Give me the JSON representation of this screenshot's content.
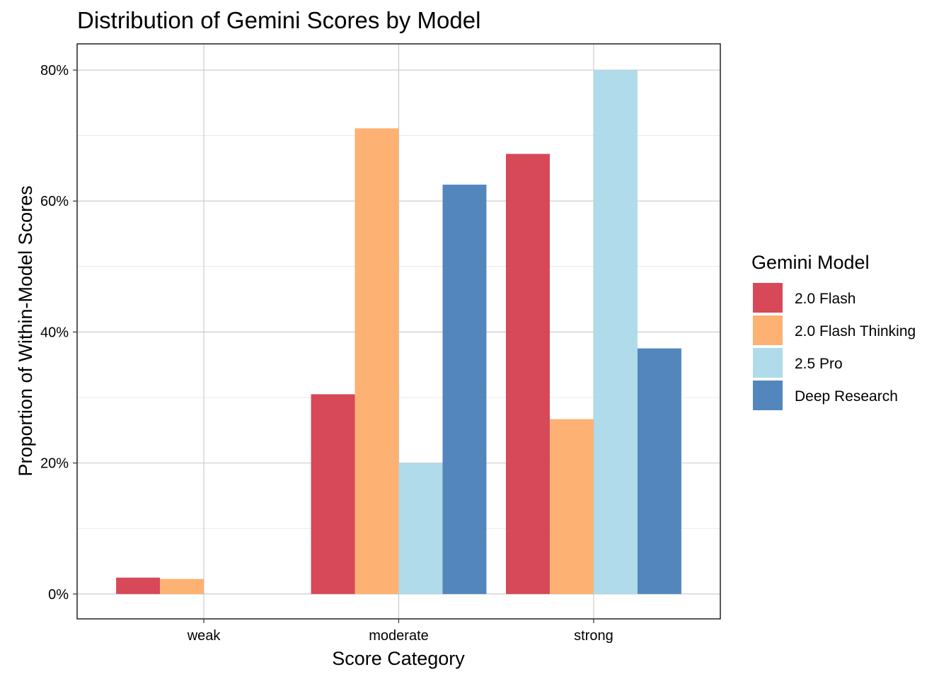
{
  "chart_data": {
    "type": "bar",
    "title": "Distribution of Gemini Scores by Model",
    "xlabel": "Score Category",
    "ylabel": "Proportion of Within-Model Scores",
    "categories": [
      "weak",
      "moderate",
      "strong"
    ],
    "ylim": [
      -0.038,
      0.84
    ],
    "y_ticks": [
      0,
      0.2,
      0.4,
      0.6,
      0.8
    ],
    "y_tick_labels": [
      "0%",
      "20%",
      "40%",
      "60%",
      "80%"
    ],
    "grid": true,
    "legend": {
      "title": "Gemini Model",
      "position": "right"
    },
    "series": [
      {
        "name": "2.0 Flash",
        "color": "#d53e4f",
        "values": [
          0.025,
          0.305,
          0.672
        ]
      },
      {
        "name": "2.0 Flash Thinking",
        "color": "#fdae6b",
        "values": [
          0.023,
          0.711,
          0.267
        ]
      },
      {
        "name": "2.5 Pro",
        "color": "#abd9e9",
        "values": [
          0,
          0.2,
          0.8
        ]
      },
      {
        "name": "Deep Research",
        "color": "#4a7fb8",
        "values": [
          0,
          0.625,
          0.375
        ]
      }
    ]
  }
}
